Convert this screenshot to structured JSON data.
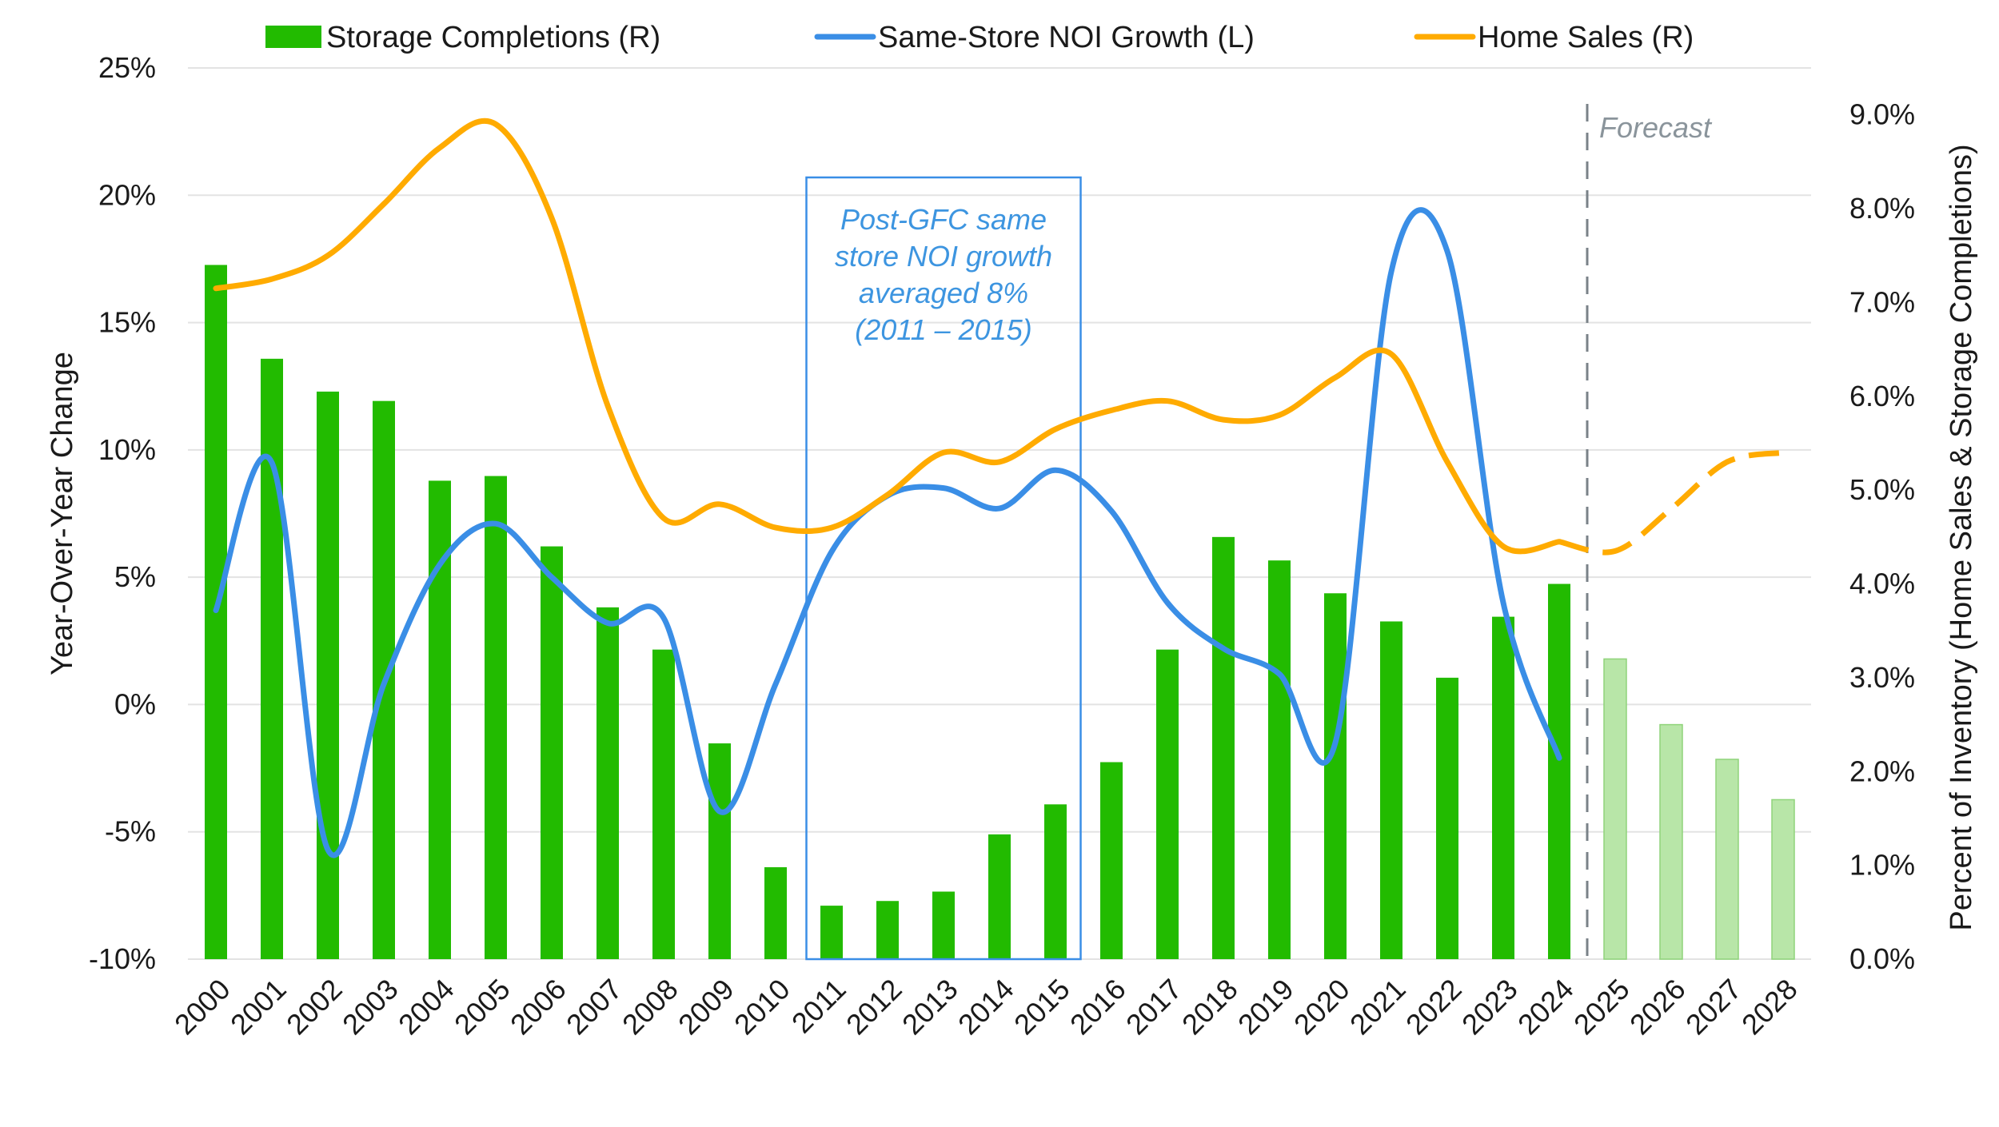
{
  "chart_data": {
    "type": "bar+line",
    "title": "",
    "years": [
      "2000",
      "2001",
      "2002",
      "2003",
      "2004",
      "2005",
      "2006",
      "2007",
      "2008",
      "2009",
      "2010",
      "2011",
      "2012",
      "2013",
      "2014",
      "2015",
      "2016",
      "2017",
      "2018",
      "2019",
      "2020",
      "2021",
      "2022",
      "2023",
      "2024",
      "2025",
      "2026",
      "2027",
      "2028"
    ],
    "forecast_start": "2025",
    "forecast_label": "Forecast",
    "left_axis": {
      "label": "Year-Over-Year Change",
      "min": -10,
      "max": 25,
      "ticks": [
        -10,
        -5,
        0,
        5,
        10,
        15,
        20,
        25
      ],
      "tick_labels": [
        "-10%",
        "-5%",
        "0%",
        "5%",
        "10%",
        "15%",
        "20%",
        "25%"
      ]
    },
    "right_axis": {
      "label": "Percent of Inventory (Home Sales & Storage Completions)",
      "min": 0,
      "max": 9.5,
      "ticks": [
        0,
        1,
        2,
        3,
        4,
        5,
        6,
        7,
        8,
        9
      ],
      "tick_labels": [
        "0.0%",
        "1.0%",
        "2.0%",
        "3.0%",
        "4.0%",
        "5.0%",
        "6.0%",
        "7.0%",
        "8.0%",
        "9.0%"
      ]
    },
    "series": [
      {
        "name": "Storage Completions (R)",
        "type": "bar",
        "axis": "right",
        "color": "#22bb00",
        "forecast_color": "#b8e6a8",
        "values": [
          7.4,
          6.4,
          6.05,
          5.95,
          5.1,
          5.15,
          4.4,
          3.75,
          3.3,
          2.3,
          0.98,
          0.57,
          0.62,
          0.72,
          1.33,
          1.65,
          2.1,
          3.3,
          4.5,
          4.25,
          3.9,
          3.6,
          3.0,
          3.65,
          4.0,
          3.2,
          2.5,
          2.13,
          1.7
        ]
      },
      {
        "name": "Same-Store NOI Growth (L)",
        "type": "line",
        "axis": "left",
        "color": "#3a8ee6",
        "values": [
          3.7,
          9.5,
          -5.7,
          0.8,
          5.5,
          7.1,
          5.0,
          3.2,
          3.4,
          -4.2,
          0.8,
          6.0,
          8.2,
          8.5,
          7.7,
          9.2,
          7.6,
          4.0,
          2.2,
          1.2,
          -1.5,
          17.0,
          17.8,
          4.0,
          -2.1
        ]
      },
      {
        "name": "Home Sales (R)",
        "type": "line",
        "axis": "right",
        "color": "#ffab00",
        "values": [
          7.15,
          7.25,
          7.5,
          8.05,
          8.65,
          8.9,
          7.9,
          5.9,
          4.7,
          4.85,
          4.6,
          4.6,
          4.95,
          5.4,
          5.3,
          5.65,
          5.85,
          5.95,
          5.75,
          5.8,
          6.2,
          6.45,
          5.3,
          4.4,
          4.45,
          4.35,
          4.8,
          5.3,
          5.4
        ]
      }
    ],
    "annotation": {
      "lines": [
        "Post-GFC same",
        "store NOI growth",
        "averaged 8%",
        "(2011 – 2015)"
      ],
      "from_year": "2011",
      "to_year": "2015",
      "color": "#3a8ee6"
    }
  }
}
